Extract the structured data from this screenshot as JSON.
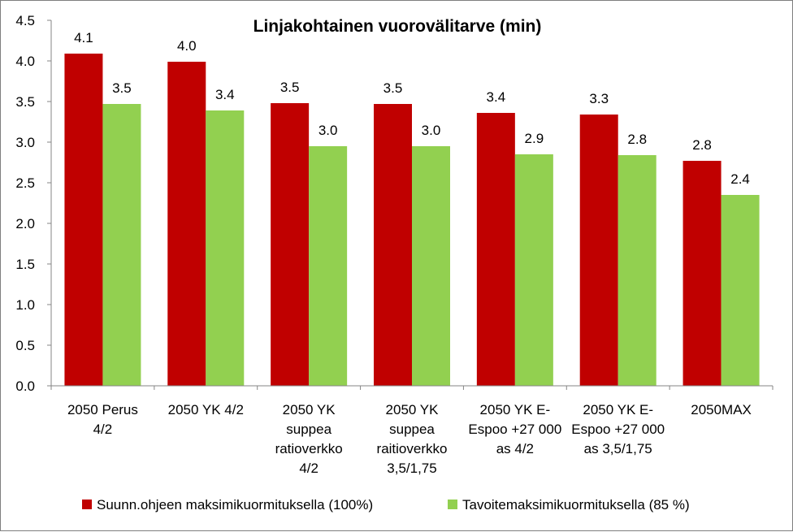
{
  "chart_data": {
    "type": "bar",
    "title": "Linjakohtainen vuorovälitarve (min)",
    "xlabel": "",
    "ylabel": "",
    "ylim": [
      0,
      4.5
    ],
    "yticks": [
      "0.0",
      "0.5",
      "1.0",
      "1.5",
      "2.0",
      "2.5",
      "3.0",
      "3.5",
      "4.0",
      "4.5"
    ],
    "categories": [
      [
        "2050 Perus",
        "4/2"
      ],
      [
        "2050 YK 4/2"
      ],
      [
        "2050 YK",
        "suppea",
        "ratioverkko",
        "4/2"
      ],
      [
        "2050 YK",
        "suppea",
        "raitioverkko",
        "3,5/1,75"
      ],
      [
        "2050 YK E-",
        "Espoo +27 000",
        "as 4/2"
      ],
      [
        "2050 YK E-",
        "Espoo +27 000",
        "as 3,5/1,75"
      ],
      [
        "2050MAX"
      ]
    ],
    "series": [
      {
        "name": "Suunn.ohjeen maksimikuormituksella (100%)",
        "color": "#c00000",
        "values": [
          4.09,
          3.99,
          3.48,
          3.47,
          3.36,
          3.34,
          2.77
        ],
        "labels": [
          "4.1",
          "4.0",
          "3.5",
          "3.5",
          "3.4",
          "3.3",
          "2.8"
        ]
      },
      {
        "name": "Tavoitemaksimikuormituksella (85 %)",
        "color": "#92d050",
        "values": [
          3.47,
          3.39,
          2.95,
          2.95,
          2.85,
          2.84,
          2.35
        ],
        "labels": [
          "3.5",
          "3.4",
          "3.0",
          "3.0",
          "2.9",
          "2.8",
          "2.4"
        ]
      }
    ],
    "legend_position": "bottom",
    "grid": false
  }
}
